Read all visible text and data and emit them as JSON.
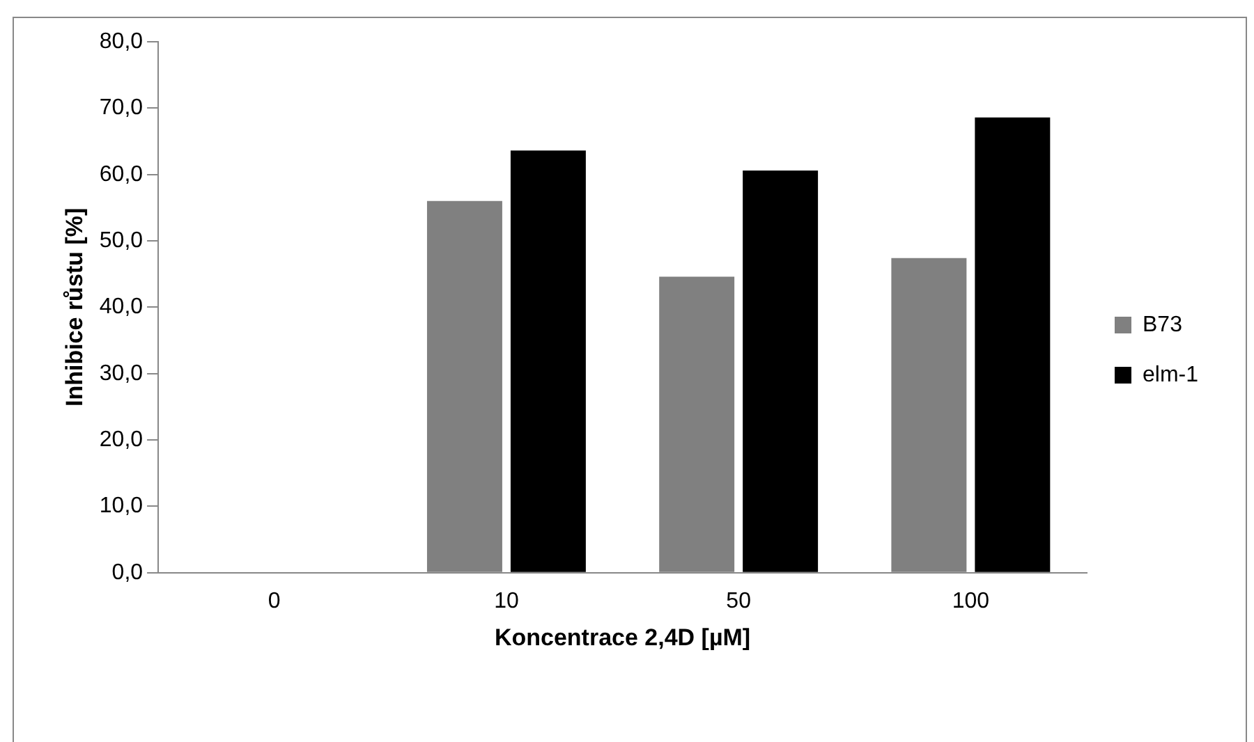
{
  "chart_data": {
    "type": "bar",
    "xlabel": "Koncentrace 2,4D [µM]",
    "ylabel": "Inhibice růstu [%]",
    "categories": [
      "0",
      "10",
      "50",
      "100"
    ],
    "series": [
      {
        "name": "B73",
        "color": "#808080",
        "values": [
          0,
          56.0,
          44.6,
          47.4
        ]
      },
      {
        "name": "elm-1",
        "color": "#000000",
        "values": [
          0,
          63.6,
          60.6,
          68.6
        ]
      }
    ],
    "ylim": [
      0,
      80
    ],
    "yticks": [
      {
        "value": 0,
        "label": "0,0"
      },
      {
        "value": 10,
        "label": "10,0"
      },
      {
        "value": 20,
        "label": "20,0"
      },
      {
        "value": 30,
        "label": "30,0"
      },
      {
        "value": 40,
        "label": "40,0"
      },
      {
        "value": 50,
        "label": "50,0"
      },
      {
        "value": 60,
        "label": "60,0"
      },
      {
        "value": 70,
        "label": "70,0"
      },
      {
        "value": 80,
        "label": "80,0"
      }
    ],
    "grid": false,
    "legend": "right"
  }
}
